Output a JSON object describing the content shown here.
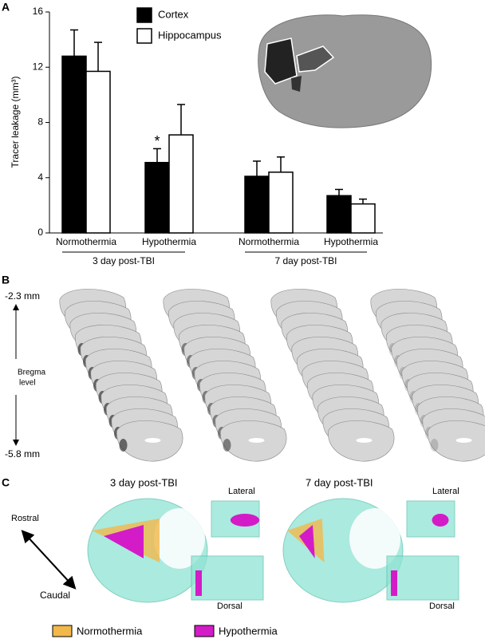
{
  "chart_data": {
    "type": "bar",
    "panel": "A",
    "ylabel": "Tracer leakage (mm³)",
    "categories": [
      "Normothermia",
      "Hypothermia",
      "Normothermia",
      "Hypothermia"
    ],
    "groups": [
      "3 day post-TBI",
      "7 day post-TBI"
    ],
    "series": [
      {
        "name": "Cortex",
        "color": "#000000",
        "values": [
          12.8,
          5.1,
          4.1,
          2.7
        ],
        "errors": [
          1.9,
          1.0,
          1.1,
          0.45
        ]
      },
      {
        "name": "Hippocampus",
        "color": "#ffffff",
        "values": [
          11.7,
          7.1,
          4.4,
          2.1
        ],
        "errors": [
          2.1,
          2.2,
          1.1,
          0.35
        ]
      }
    ],
    "annotation": "*",
    "ylim": [
      0,
      16
    ],
    "yticks": [
      0,
      4,
      8,
      12,
      16
    ]
  },
  "panel_b": {
    "label": "B",
    "top": "-2.3 mm",
    "axis_label": [
      "Bregma",
      "level"
    ],
    "bottom": "-5.8 mm"
  },
  "panel_c": {
    "label": "C",
    "titles": [
      "3 day post-TBI",
      "7 day post-TBI"
    ],
    "lateral": "Lateral",
    "dorsal": "Dorsal",
    "rostral": "Rostral",
    "caudal": "Caudal",
    "legend": [
      {
        "name": "Normothermia",
        "color": "#f2b84b"
      },
      {
        "name": "Hypothermia",
        "color": "#d41bc8"
      }
    ]
  }
}
